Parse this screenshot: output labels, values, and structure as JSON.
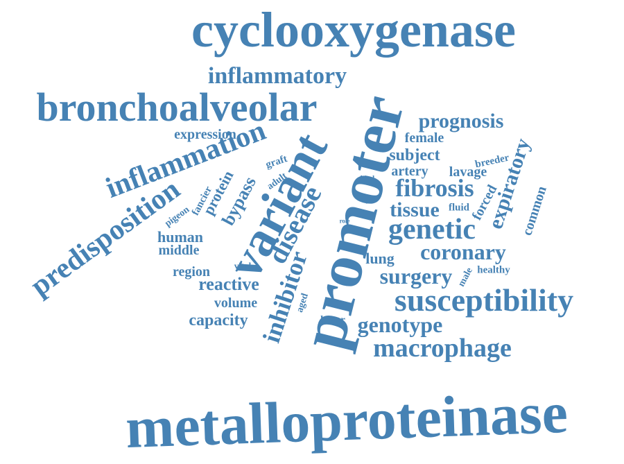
{
  "colors": {
    "word": "#4682B4",
    "background": "#ffffff"
  },
  "words": {
    "cyclooxygenase": "cyclooxygenase",
    "metalloproteinase": "metalloproteinase",
    "promoter": "promoter",
    "bronchoalveolar": "bronchoalveolar",
    "variant": "variant",
    "inflammatory": "inflammatory",
    "inflammation": "inflammation",
    "predisposition": "predisposition",
    "susceptibility": "susceptibility",
    "macrophage": "macrophage",
    "prognosis": "prognosis",
    "expression": "expression",
    "female": "female",
    "subject": "subject",
    "breeder": "breeder",
    "artery": "artery",
    "lavage": "lavage",
    "fibrosis": "fibrosis",
    "tissue": "tissue",
    "fluid": "fluid",
    "genetic": "genetic",
    "coronary": "coronary",
    "lung": "lung",
    "surgery": "surgery",
    "healthy": "healthy",
    "male": "male",
    "genotype": "genotype",
    "lower": "lower",
    "expiratory": "expiratory",
    "common": "common",
    "forced": "forced",
    "disease": "disease",
    "inhibitor": "inhibitor",
    "aged": "aged",
    "graft": "graft",
    "adult": "adult",
    "bypass": "bypass",
    "protein": "protein",
    "fancier": "fancier",
    "pigeon": "pigeon",
    "human": "human",
    "middle": "middle",
    "region": "region",
    "vital": "vital",
    "reactive": "reactive",
    "volume": "volume",
    "capacity": "capacity",
    "bird": "bird",
    "timp": "timp",
    "role": "role"
  }
}
